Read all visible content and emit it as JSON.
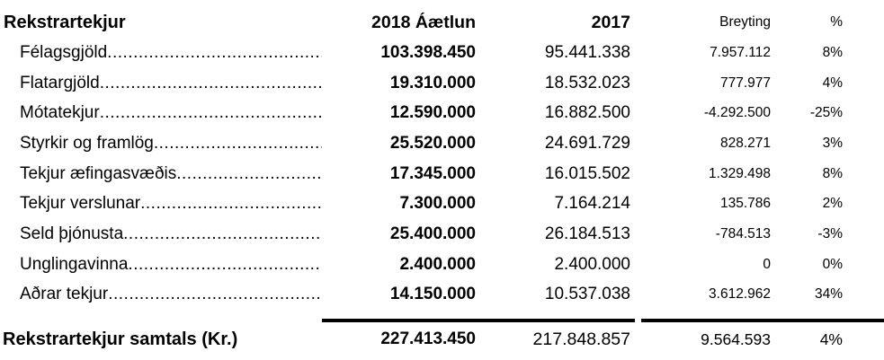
{
  "table": {
    "title": "Rekstrartekjur",
    "columns": {
      "budget": "2018 Áætlun",
      "prev": "2017",
      "change": "Breyting",
      "pct": "%"
    },
    "leader_dots": "....................................................................................................",
    "rows": [
      {
        "label": "Félagsgjöld",
        "budget2018": "103.398.450",
        "y2017": "95.441.338",
        "change": "7.957.112",
        "pct": "8%"
      },
      {
        "label": "Flatargjöld",
        "budget2018": "19.310.000",
        "y2017": "18.532.023",
        "change": "777.977",
        "pct": "4%"
      },
      {
        "label": "Mótatekjur",
        "budget2018": "12.590.000",
        "y2017": "16.882.500",
        "change": "-4.292.500",
        "pct": "-25%"
      },
      {
        "label": "Styrkir og framlög",
        "budget2018": "25.520.000",
        "y2017": "24.691.729",
        "change": "828.271",
        "pct": "3%"
      },
      {
        "label": "Tekjur æfingasvæðis",
        "budget2018": "17.345.000",
        "y2017": "16.015.502",
        "change": "1.329.498",
        "pct": "8%"
      },
      {
        "label": "Tekjur verslunar",
        "budget2018": "7.300.000",
        "y2017": "7.164.214",
        "change": "135.786",
        "pct": "2%"
      },
      {
        "label": "Seld þjónusta",
        "budget2018": "25.400.000",
        "y2017": "26.184.513",
        "change": "-784.513",
        "pct": "-3%"
      },
      {
        "label": "Unglingavinna",
        "budget2018": "2.400.000",
        "y2017": "2.400.000",
        "change": "0",
        "pct": "0%"
      },
      {
        "label": "Aðrar tekjur",
        "budget2018": "14.150.000",
        "y2017": "10.537.038",
        "change": "3.612.962",
        "pct": "34%"
      }
    ],
    "total": {
      "label": "Rekstrartekjur samtals (Kr.)",
      "budget2018": "227.413.450",
      "y2017": "217.848.857",
      "change": "9.564.593",
      "pct": "4%"
    }
  },
  "colors": {
    "text": "#000000",
    "background": "#ffffff",
    "rule": "#000000"
  }
}
